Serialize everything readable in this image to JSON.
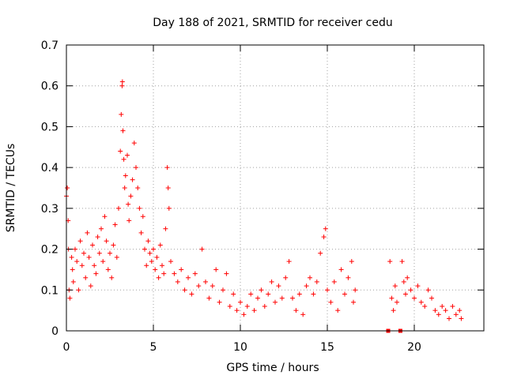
{
  "chart_data": {
    "type": "scatter",
    "title": "Day 188 of 2021, SRMTID for receiver cedu",
    "xlabel": "GPS time / hours",
    "ylabel": "SRMTID / TECUs",
    "xlim": [
      0,
      24
    ],
    "ylim": [
      0,
      0.7
    ],
    "xticks": [
      0,
      5,
      10,
      15,
      20
    ],
    "yticks": [
      0,
      0.1,
      0.2,
      0.3,
      0.4,
      0.5,
      0.6,
      0.7
    ],
    "xtick_labels": [
      "0",
      "5",
      "10",
      "15",
      "20"
    ],
    "ytick_labels": [
      "0",
      "0.1",
      "0.2",
      "0.3",
      "0.4",
      "0.5",
      "0.6",
      "0.7"
    ],
    "grid": true,
    "marker": "plus",
    "color": "#ff0000",
    "series": [
      {
        "name": "SRMTID",
        "points": [
          [
            0.0,
            0.33
          ],
          [
            0.05,
            0.35
          ],
          [
            0.1,
            0.27
          ],
          [
            0.12,
            0.2
          ],
          [
            0.15,
            0.1
          ],
          [
            0.2,
            0.08
          ],
          [
            0.3,
            0.18
          ],
          [
            0.35,
            0.15
          ],
          [
            0.4,
            0.12
          ],
          [
            0.5,
            0.2
          ],
          [
            0.6,
            0.17
          ],
          [
            0.7,
            0.1
          ],
          [
            0.8,
            0.22
          ],
          [
            0.9,
            0.16
          ],
          [
            1.0,
            0.19
          ],
          [
            1.1,
            0.13
          ],
          [
            1.2,
            0.24
          ],
          [
            1.3,
            0.18
          ],
          [
            1.4,
            0.11
          ],
          [
            1.5,
            0.21
          ],
          [
            1.6,
            0.16
          ],
          [
            1.7,
            0.14
          ],
          [
            1.8,
            0.23
          ],
          [
            1.9,
            0.19
          ],
          [
            2.0,
            0.25
          ],
          [
            2.1,
            0.17
          ],
          [
            2.2,
            0.28
          ],
          [
            2.3,
            0.22
          ],
          [
            2.4,
            0.15
          ],
          [
            2.5,
            0.19
          ],
          [
            2.6,
            0.13
          ],
          [
            2.7,
            0.21
          ],
          [
            2.8,
            0.26
          ],
          [
            2.9,
            0.18
          ],
          [
            3.0,
            0.3
          ],
          [
            3.1,
            0.44
          ],
          [
            3.15,
            0.53
          ],
          [
            3.2,
            0.6
          ],
          [
            3.22,
            0.61
          ],
          [
            3.25,
            0.49
          ],
          [
            3.3,
            0.42
          ],
          [
            3.35,
            0.35
          ],
          [
            3.4,
            0.38
          ],
          [
            3.5,
            0.43
          ],
          [
            3.55,
            0.31
          ],
          [
            3.6,
            0.27
          ],
          [
            3.7,
            0.33
          ],
          [
            3.8,
            0.37
          ],
          [
            3.9,
            0.46
          ],
          [
            4.0,
            0.4
          ],
          [
            4.1,
            0.35
          ],
          [
            4.2,
            0.3
          ],
          [
            4.3,
            0.24
          ],
          [
            4.4,
            0.28
          ],
          [
            4.5,
            0.2
          ],
          [
            4.6,
            0.16
          ],
          [
            4.7,
            0.22
          ],
          [
            4.8,
            0.19
          ],
          [
            4.9,
            0.17
          ],
          [
            5.0,
            0.2
          ],
          [
            5.1,
            0.15
          ],
          [
            5.2,
            0.18
          ],
          [
            5.3,
            0.13
          ],
          [
            5.4,
            0.21
          ],
          [
            5.5,
            0.16
          ],
          [
            5.6,
            0.14
          ],
          [
            5.7,
            0.25
          ],
          [
            5.8,
            0.4
          ],
          [
            5.85,
            0.35
          ],
          [
            5.9,
            0.3
          ],
          [
            6.0,
            0.17
          ],
          [
            6.2,
            0.14
          ],
          [
            6.4,
            0.12
          ],
          [
            6.6,
            0.15
          ],
          [
            6.8,
            0.1
          ],
          [
            7.0,
            0.13
          ],
          [
            7.2,
            0.09
          ],
          [
            7.4,
            0.14
          ],
          [
            7.6,
            0.11
          ],
          [
            7.8,
            0.2
          ],
          [
            8.0,
            0.12
          ],
          [
            8.2,
            0.08
          ],
          [
            8.4,
            0.11
          ],
          [
            8.6,
            0.15
          ],
          [
            8.8,
            0.07
          ],
          [
            9.0,
            0.1
          ],
          [
            9.2,
            0.14
          ],
          [
            9.4,
            0.06
          ],
          [
            9.6,
            0.09
          ],
          [
            9.8,
            0.05
          ],
          [
            10.0,
            0.07
          ],
          [
            10.2,
            0.04
          ],
          [
            10.4,
            0.06
          ],
          [
            10.6,
            0.09
          ],
          [
            10.8,
            0.05
          ],
          [
            11.0,
            0.08
          ],
          [
            11.2,
            0.1
          ],
          [
            11.4,
            0.06
          ],
          [
            11.6,
            0.09
          ],
          [
            11.8,
            0.12
          ],
          [
            12.0,
            0.07
          ],
          [
            12.2,
            0.11
          ],
          [
            12.4,
            0.08
          ],
          [
            12.6,
            0.13
          ],
          [
            12.8,
            0.17
          ],
          [
            13.0,
            0.08
          ],
          [
            13.2,
            0.05
          ],
          [
            13.4,
            0.09
          ],
          [
            13.6,
            0.04
          ],
          [
            13.8,
            0.11
          ],
          [
            14.0,
            0.13
          ],
          [
            14.2,
            0.09
          ],
          [
            14.4,
            0.12
          ],
          [
            14.6,
            0.19
          ],
          [
            14.8,
            0.23
          ],
          [
            14.9,
            0.25
          ],
          [
            15.0,
            0.1
          ],
          [
            15.2,
            0.07
          ],
          [
            15.4,
            0.12
          ],
          [
            15.6,
            0.05
          ],
          [
            15.8,
            0.15
          ],
          [
            16.0,
            0.09
          ],
          [
            16.2,
            0.13
          ],
          [
            16.4,
            0.17
          ],
          [
            16.5,
            0.07
          ],
          [
            16.6,
            0.1
          ],
          [
            18.5,
            0.0
          ],
          [
            18.6,
            0.17
          ],
          [
            18.7,
            0.08
          ],
          [
            18.8,
            0.05
          ],
          [
            18.9,
            0.11
          ],
          [
            19.0,
            0.07
          ],
          [
            19.2,
            0.0
          ],
          [
            19.3,
            0.17
          ],
          [
            19.4,
            0.12
          ],
          [
            19.5,
            0.09
          ],
          [
            19.6,
            0.13
          ],
          [
            19.8,
            0.1
          ],
          [
            20.0,
            0.08
          ],
          [
            20.2,
            0.11
          ],
          [
            20.4,
            0.07
          ],
          [
            20.6,
            0.06
          ],
          [
            20.8,
            0.1
          ],
          [
            21.0,
            0.08
          ],
          [
            21.2,
            0.05
          ],
          [
            21.4,
            0.04
          ],
          [
            21.6,
            0.06
          ],
          [
            21.8,
            0.05
          ],
          [
            22.0,
            0.03
          ],
          [
            22.2,
            0.06
          ],
          [
            22.4,
            0.04
          ],
          [
            22.6,
            0.05
          ],
          [
            22.7,
            0.03
          ]
        ]
      }
    ]
  }
}
